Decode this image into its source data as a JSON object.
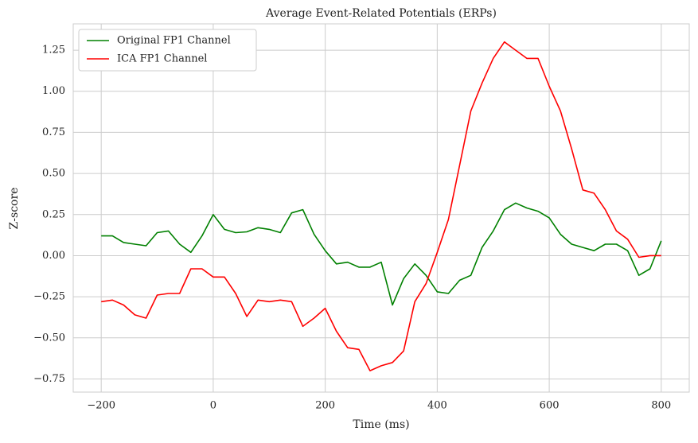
{
  "chart_data": {
    "type": "line",
    "title": "Average Event-Related Potentials (ERPs)",
    "x_label": "Time (ms)",
    "y_label": "Z-score",
    "x": [
      -200,
      -180,
      -160,
      -140,
      -120,
      -100,
      -80,
      -60,
      -40,
      -20,
      0,
      20,
      40,
      60,
      80,
      100,
      120,
      140,
      160,
      180,
      200,
      220,
      240,
      260,
      280,
      300,
      320,
      340,
      360,
      380,
      400,
      420,
      440,
      460,
      480,
      500,
      520,
      540,
      560,
      580,
      600,
      620,
      640,
      660,
      680,
      700,
      720,
      740,
      760,
      780,
      800
    ],
    "series": [
      {
        "name": "Original FP1 Channel",
        "color": "#008000",
        "values": [
          0.12,
          0.12,
          0.08,
          0.07,
          0.06,
          0.14,
          0.15,
          0.07,
          0.02,
          0.12,
          0.25,
          0.16,
          0.14,
          0.145,
          0.17,
          0.16,
          0.14,
          0.26,
          0.28,
          0.13,
          0.03,
          -0.05,
          -0.04,
          -0.07,
          -0.07,
          -0.04,
          -0.3,
          -0.14,
          -0.05,
          -0.12,
          -0.22,
          -0.23,
          -0.15,
          -0.12,
          0.05,
          0.15,
          0.28,
          0.32,
          0.29,
          0.27,
          0.23,
          0.13,
          0.07,
          0.05,
          0.03,
          0.07,
          0.07,
          0.03,
          -0.12,
          -0.08,
          0.09
        ]
      },
      {
        "name": "ICA FP1 Channel",
        "color": "#ff0000",
        "values": [
          -0.28,
          -0.27,
          -0.3,
          -0.36,
          -0.38,
          -0.24,
          -0.23,
          -0.23,
          -0.08,
          -0.08,
          -0.13,
          -0.13,
          -0.23,
          -0.37,
          -0.27,
          -0.28,
          -0.27,
          -0.28,
          -0.43,
          -0.38,
          -0.32,
          -0.46,
          -0.56,
          -0.57,
          -0.7,
          -0.67,
          -0.65,
          -0.58,
          -0.28,
          -0.17,
          0.02,
          0.22,
          0.55,
          0.88,
          1.05,
          1.2,
          1.3,
          1.25,
          1.2,
          1.2,
          1.03,
          0.88,
          0.65,
          0.4,
          0.38,
          0.28,
          0.15,
          0.1,
          -0.01,
          0.0,
          0.0
        ]
      }
    ],
    "xlim": [
      -250,
      850
    ],
    "ylim": [
      -0.83,
      1.41
    ],
    "xticks": [
      {
        "value": -200,
        "label": "−200"
      },
      0,
      200,
      400,
      600,
      800
    ],
    "yticks": [
      {
        "value": -0.75,
        "label": "−0.75"
      },
      {
        "value": -0.5,
        "label": "−0.50"
      },
      {
        "value": -0.25,
        "label": "−0.25"
      },
      {
        "value": 0,
        "label": "0.00"
      },
      {
        "value": 0.25,
        "label": "0.25"
      },
      {
        "value": 0.5,
        "label": "0.50"
      },
      {
        "value": 0.75,
        "label": "0.75"
      },
      {
        "value": 1,
        "label": "1.00"
      },
      {
        "value": 1.25,
        "label": "1.25"
      }
    ],
    "grid": true,
    "legend": "upper left"
  }
}
